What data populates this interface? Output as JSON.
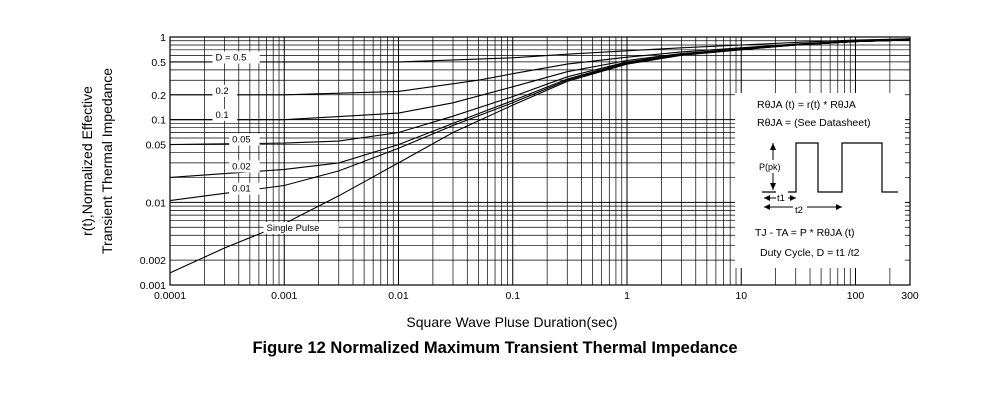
{
  "chart_data": {
    "type": "line",
    "title": "Figure 12 Normalized Maximum Transient Thermal Impedance",
    "xlabel": "Square Wave Pluse Duration(sec)",
    "ylabel_line1": "r(t),Normalized Effective",
    "ylabel_line2": "Transient Thermal Impedance",
    "x_scale": "log",
    "y_scale": "log",
    "xlim": [
      0.0001,
      300
    ],
    "ylim": [
      0.001,
      1
    ],
    "grid": true,
    "x_ticks": [
      {
        "v": 0.0001,
        "label": "0.0001"
      },
      {
        "v": 0.001,
        "label": "0.001"
      },
      {
        "v": 0.01,
        "label": "0.01"
      },
      {
        "v": 0.1,
        "label": "0.1"
      },
      {
        "v": 1,
        "label": "1"
      },
      {
        "v": 10,
        "label": "10"
      },
      {
        "v": 100,
        "label": "100"
      },
      {
        "v": 300,
        "label": "300"
      }
    ],
    "y_ticks": [
      {
        "v": 1,
        "label": "1"
      },
      {
        "v": 0.5,
        "label": "0.5"
      },
      {
        "v": 0.2,
        "label": "0.2"
      },
      {
        "v": 0.1,
        "label": "0.1"
      },
      {
        "v": 0.05,
        "label": "0.05"
      },
      {
        "v": 0.01,
        "label": "0.01"
      },
      {
        "v": 0.002,
        "label": "0.002"
      },
      {
        "v": 0.001,
        "label": "0.001"
      }
    ],
    "series": [
      {
        "name": "D = 0.5",
        "label_at": [
          0.00025,
          0.52
        ],
        "points": [
          [
            0.0001,
            0.5
          ],
          [
            0.001,
            0.5
          ],
          [
            0.01,
            0.5
          ],
          [
            0.1,
            0.56
          ],
          [
            0.3,
            0.62
          ],
          [
            1,
            0.68
          ],
          [
            3,
            0.74
          ],
          [
            10,
            0.8
          ],
          [
            30,
            0.86
          ],
          [
            100,
            0.92
          ],
          [
            300,
            0.95
          ]
        ]
      },
      {
        "name": "0.2",
        "label_at": [
          0.00025,
          0.205
        ],
        "points": [
          [
            0.0001,
            0.2
          ],
          [
            0.001,
            0.2
          ],
          [
            0.01,
            0.22
          ],
          [
            0.05,
            0.3
          ],
          [
            0.1,
            0.36
          ],
          [
            0.3,
            0.47
          ],
          [
            1,
            0.57
          ],
          [
            3,
            0.66
          ],
          [
            10,
            0.74
          ],
          [
            30,
            0.82
          ],
          [
            100,
            0.9
          ],
          [
            300,
            0.95
          ]
        ]
      },
      {
        "name": "0.1",
        "label_at": [
          0.00025,
          0.105
        ],
        "points": [
          [
            0.0001,
            0.1
          ],
          [
            0.001,
            0.1
          ],
          [
            0.01,
            0.12
          ],
          [
            0.03,
            0.16
          ],
          [
            0.1,
            0.25
          ],
          [
            0.3,
            0.38
          ],
          [
            1,
            0.52
          ],
          [
            3,
            0.63
          ],
          [
            10,
            0.72
          ],
          [
            30,
            0.8
          ],
          [
            100,
            0.88
          ],
          [
            300,
            0.93
          ]
        ]
      },
      {
        "name": "0.05",
        "label_at": [
          0.00035,
          0.053
        ],
        "points": [
          [
            0.0001,
            0.05
          ],
          [
            0.001,
            0.052
          ],
          [
            0.003,
            0.055
          ],
          [
            0.01,
            0.07
          ],
          [
            0.03,
            0.11
          ],
          [
            0.1,
            0.19
          ],
          [
            0.3,
            0.33
          ],
          [
            1,
            0.5
          ],
          [
            3,
            0.62
          ],
          [
            10,
            0.72
          ],
          [
            30,
            0.8
          ],
          [
            100,
            0.88
          ],
          [
            300,
            0.92
          ]
        ]
      },
      {
        "name": "0.02",
        "label_at": [
          0.00035,
          0.025
        ],
        "points": [
          [
            0.0001,
            0.02
          ],
          [
            0.001,
            0.025
          ],
          [
            0.003,
            0.03
          ],
          [
            0.01,
            0.05
          ],
          [
            0.03,
            0.09
          ],
          [
            0.1,
            0.17
          ],
          [
            0.3,
            0.31
          ],
          [
            1,
            0.49
          ],
          [
            3,
            0.61
          ],
          [
            10,
            0.71
          ],
          [
            30,
            0.8
          ],
          [
            100,
            0.88
          ],
          [
            300,
            0.92
          ]
        ]
      },
      {
        "name": "0.01",
        "label_at": [
          0.00035,
          0.0135
        ],
        "points": [
          [
            0.0001,
            0.0105
          ],
          [
            0.001,
            0.016
          ],
          [
            0.003,
            0.024
          ],
          [
            0.01,
            0.045
          ],
          [
            0.03,
            0.085
          ],
          [
            0.1,
            0.16
          ],
          [
            0.3,
            0.3
          ],
          [
            1,
            0.48
          ],
          [
            3,
            0.61
          ],
          [
            10,
            0.71
          ],
          [
            30,
            0.8
          ],
          [
            100,
            0.88
          ],
          [
            300,
            0.92
          ]
        ]
      },
      {
        "name": "Single Pulse",
        "label_at": [
          0.0007,
          0.0045
        ],
        "points": [
          [
            0.0001,
            0.0014
          ],
          [
            0.0003,
            0.0028
          ],
          [
            0.001,
            0.0055
          ],
          [
            0.003,
            0.012
          ],
          [
            0.01,
            0.03
          ],
          [
            0.03,
            0.07
          ],
          [
            0.1,
            0.15
          ],
          [
            0.3,
            0.29
          ],
          [
            1,
            0.47
          ],
          [
            3,
            0.6
          ],
          [
            10,
            0.7
          ],
          [
            30,
            0.8
          ],
          [
            100,
            0.88
          ],
          [
            300,
            0.92
          ]
        ]
      }
    ],
    "annotation_box": {
      "line1": "RθJA (t) = r(t)  *  RθJA",
      "line2": "RθJA  = (See Datasheet)",
      "ppk_label": "P(pk)",
      "t1_label": "t1",
      "t2_label": "t2",
      "eq_label": "TJ - TA  = P  *  RθJA  (t)",
      "duty_label": "Duty Cycle, D = t1  /t2"
    }
  }
}
